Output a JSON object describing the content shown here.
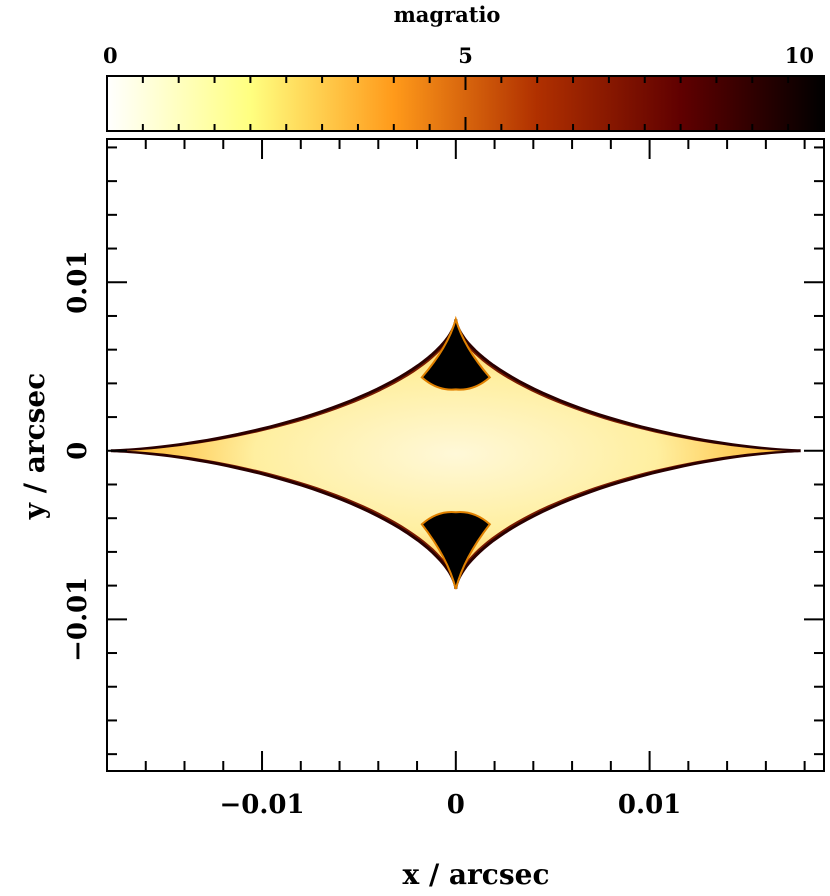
{
  "chart_data": {
    "type": "heatmap",
    "title": "",
    "xlabel": "x / arcsec",
    "ylabel": "y / arcsec",
    "xlim": [
      -0.018,
      0.019
    ],
    "ylim": [
      -0.019,
      0.0185
    ],
    "x_ticks": [
      {
        "value": -0.01,
        "label": "−0.01"
      },
      {
        "value": 0,
        "label": "0"
      },
      {
        "value": 0.01,
        "label": "0.01"
      }
    ],
    "y_ticks": [
      {
        "value": 0.01,
        "label": "0.01"
      },
      {
        "value": 0,
        "label": "0"
      },
      {
        "value": -0.01,
        "label": "−0.01"
      }
    ],
    "colorbar": {
      "label": "magratio",
      "range": [
        0,
        10
      ],
      "ticks": [
        {
          "value": 0,
          "label": "0"
        },
        {
          "value": 5,
          "label": "5"
        },
        {
          "value": 10,
          "label": "10"
        }
      ],
      "colormap": [
        "#ffffff",
        "#ffff80",
        "#ff9a1a",
        "#b03000",
        "#600000",
        "#000000"
      ]
    },
    "caustic": {
      "description_values": {
        "x_extent": [
          -0.0178,
          0.0178
        ],
        "y_extent": [
          -0.0082,
          0.0078
        ],
        "cusp_tip_y": [
          0.0078,
          -0.0082
        ],
        "dark_cusp_region_y": [
          [
            0.004,
            0.0078
          ],
          [
            -0.0082,
            -0.004
          ]
        ],
        "interior_value": 1.5,
        "edge_value": 9,
        "cusp_value": 10
      }
    }
  }
}
